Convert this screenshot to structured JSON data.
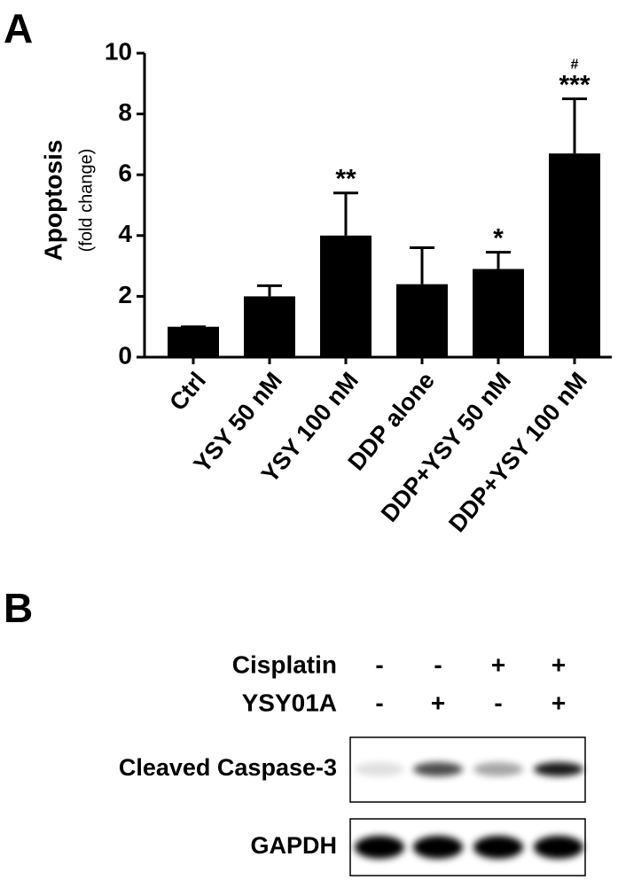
{
  "chart_data": {
    "type": "bar",
    "panel": "A",
    "ylabel": "Apoptosis",
    "ylabel_sub": "(fold change)",
    "categories": [
      "Ctrl",
      "YSY 50 nM",
      "YSY 100 nM",
      "DDP alone",
      "DDP+YSY 50 nM",
      "DDP+YSY 100 nM"
    ],
    "values": [
      1.0,
      2.0,
      4.0,
      2.4,
      2.9,
      6.7
    ],
    "errors": [
      0,
      0.35,
      1.4,
      1.2,
      0.55,
      1.8
    ],
    "significance": [
      null,
      null,
      "**",
      null,
      "*",
      "***"
    ],
    "significance_vs_ddp": [
      null,
      null,
      null,
      null,
      null,
      "#"
    ],
    "color": "#000000",
    "ylim": [
      0,
      10
    ],
    "yticks": [
      0,
      2,
      4,
      6,
      8,
      10
    ]
  },
  "blot": {
    "panel": "B",
    "conditions": [
      {
        "name": "Cisplatin",
        "values": [
          "-",
          "-",
          "+",
          "+"
        ]
      },
      {
        "name": "YSY01A",
        "values": [
          "-",
          "+",
          "-",
          "+"
        ]
      }
    ],
    "bands": [
      "Cleaved Caspase-3",
      "GAPDH"
    ]
  }
}
